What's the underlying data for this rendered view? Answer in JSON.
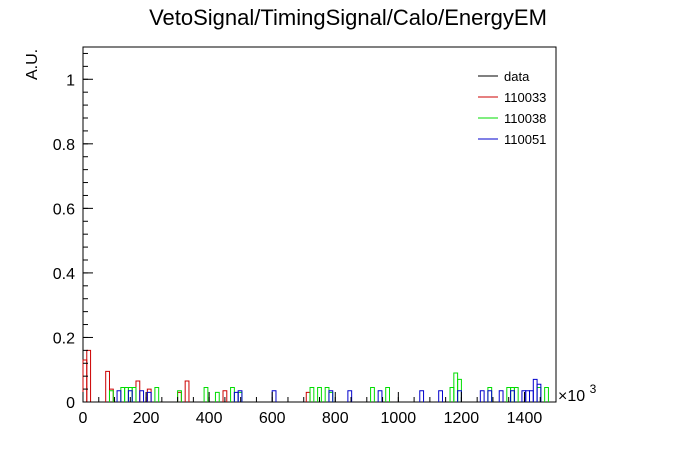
{
  "chart_data": {
    "type": "histogram",
    "title": "VetoSignal/TimingSignal/Calo/EnergyEM",
    "ylabel": "A.U.",
    "xlabel": "",
    "x_multiplier": "×10",
    "x_multiplier_exp": "3",
    "xlim": [
      0,
      1500
    ],
    "ylim": [
      0,
      1.1
    ],
    "xticks": [
      0,
      200,
      400,
      600,
      800,
      1000,
      1200,
      1400
    ],
    "yticks": [
      0,
      0.2,
      0.4,
      0.6,
      0.8,
      1
    ],
    "ytick_labels": [
      "0",
      "0.2",
      "0.4",
      "0.6",
      "0.8",
      "1"
    ],
    "bin_width": 12,
    "legend_position": "top-right",
    "series": [
      {
        "name": "data",
        "color": "#000000",
        "bins": []
      },
      {
        "name": "110033",
        "color": "#cc0000",
        "bins": [
          [
            0,
            0.13
          ],
          [
            12,
            0.16
          ],
          [
            72,
            0.095
          ],
          [
            84,
            0.04
          ],
          [
            168,
            0.065
          ],
          [
            204,
            0.04
          ],
          [
            300,
            0.03
          ],
          [
            324,
            0.065
          ],
          [
            444,
            0.035
          ],
          [
            708,
            0.03
          ]
        ]
      },
      {
        "name": "110038",
        "color": "#00dd00",
        "bins": [
          [
            84,
            0.035
          ],
          [
            120,
            0.045
          ],
          [
            132,
            0.045
          ],
          [
            144,
            0.045
          ],
          [
            156,
            0.045
          ],
          [
            228,
            0.045
          ],
          [
            300,
            0.035
          ],
          [
            384,
            0.045
          ],
          [
            420,
            0.03
          ],
          [
            468,
            0.045
          ],
          [
            492,
            0.03
          ],
          [
            720,
            0.045
          ],
          [
            744,
            0.045
          ],
          [
            768,
            0.045
          ],
          [
            780,
            0.03
          ],
          [
            912,
            0.045
          ],
          [
            960,
            0.045
          ],
          [
            1164,
            0.045
          ],
          [
            1176,
            0.09
          ],
          [
            1188,
            0.07
          ],
          [
            1284,
            0.045
          ],
          [
            1344,
            0.045
          ],
          [
            1356,
            0.045
          ],
          [
            1368,
            0.045
          ],
          [
            1440,
            0.045
          ],
          [
            1464,
            0.045
          ]
        ]
      },
      {
        "name": "110051",
        "color": "#0000cc",
        "bins": [
          [
            108,
            0.035
          ],
          [
            144,
            0.035
          ],
          [
            180,
            0.035
          ],
          [
            204,
            0.03
          ],
          [
            480,
            0.03
          ],
          [
            492,
            0.035
          ],
          [
            600,
            0.035
          ],
          [
            780,
            0.035
          ],
          [
            840,
            0.035
          ],
          [
            936,
            0.035
          ],
          [
            1068,
            0.035
          ],
          [
            1128,
            0.035
          ],
          [
            1188,
            0.035
          ],
          [
            1260,
            0.035
          ],
          [
            1284,
            0.035
          ],
          [
            1320,
            0.035
          ],
          [
            1356,
            0.035
          ],
          [
            1392,
            0.035
          ],
          [
            1404,
            0.035
          ],
          [
            1416,
            0.035
          ],
          [
            1428,
            0.07
          ],
          [
            1440,
            0.055
          ]
        ]
      }
    ]
  }
}
